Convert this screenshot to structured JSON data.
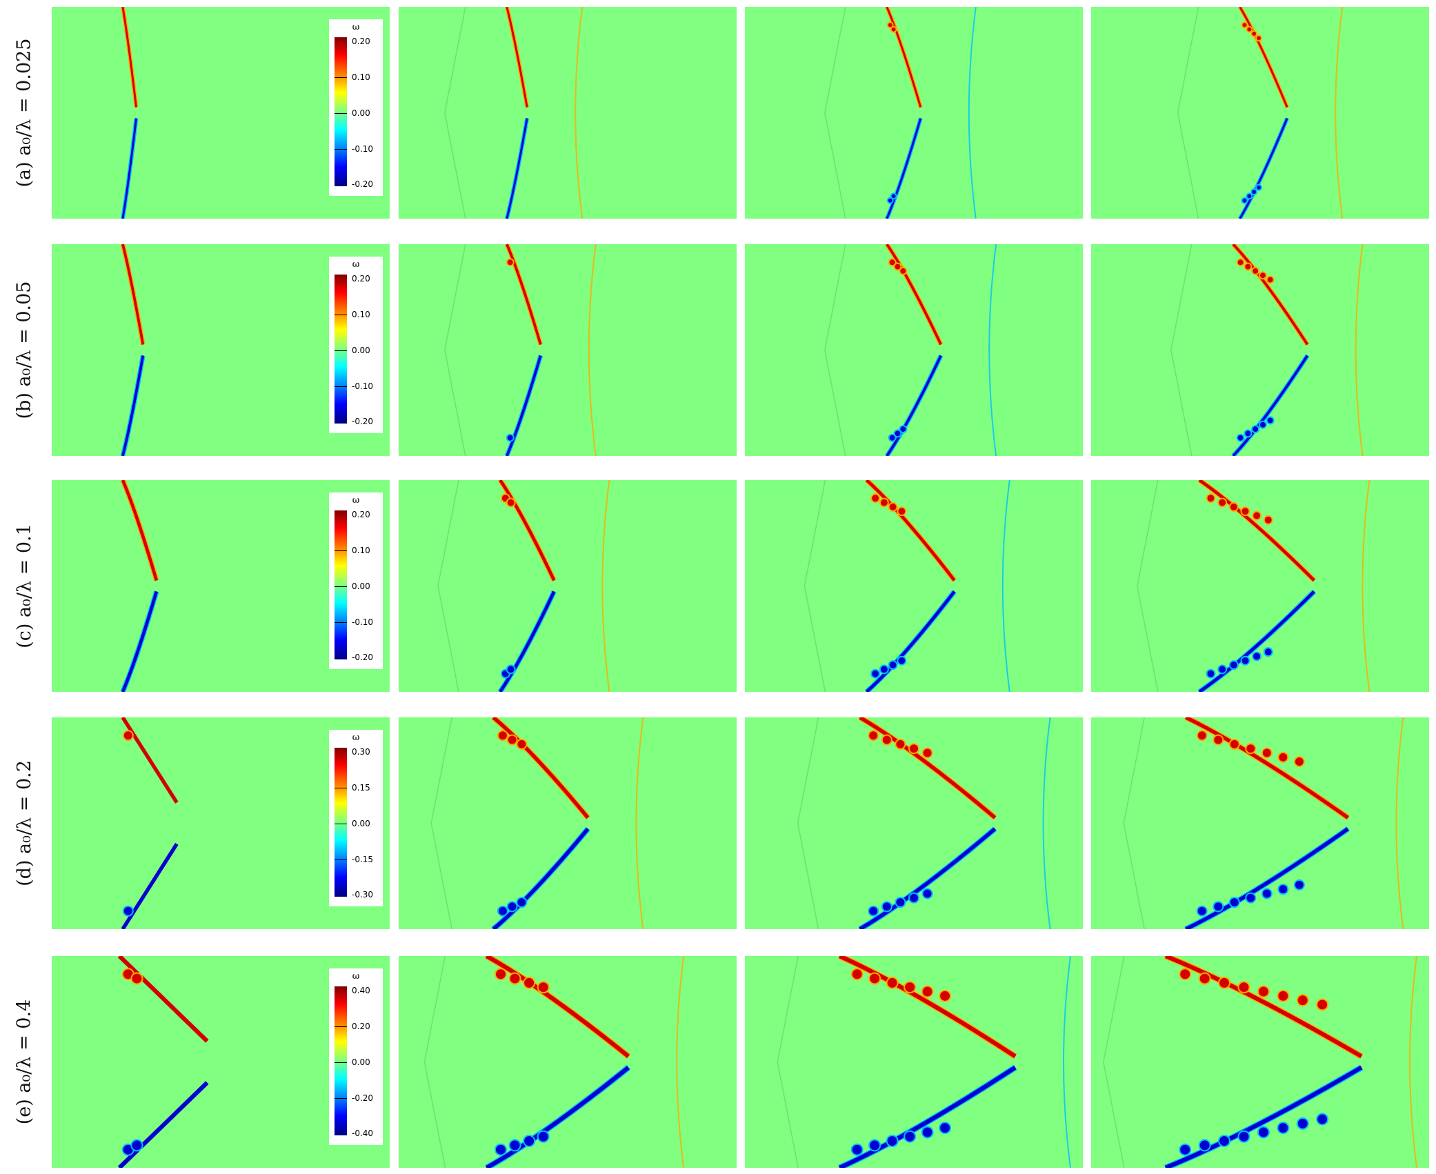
{
  "rows": [
    {
      "id": "a",
      "label": "(a) a₀/λ = 0.025",
      "colorbar": {
        "title": "ω",
        "ticks": [
          "0.20",
          "0.10",
          "0.00",
          "-0.10",
          "-0.20"
        ]
      }
    },
    {
      "id": "b",
      "label": "(b) a₀/λ = 0.05",
      "colorbar": {
        "title": "ω",
        "ticks": [
          "0.20",
          "0.10",
          "0.00",
          "-0.10",
          "-0.20"
        ]
      }
    },
    {
      "id": "c",
      "label": "(c) a₀/λ = 0.1",
      "colorbar": {
        "title": "ω",
        "ticks": [
          "0.20",
          "0.10",
          "0.00",
          "-0.10",
          "-0.20"
        ]
      }
    },
    {
      "id": "d",
      "label": "(d) a₀/λ = 0.2",
      "colorbar": {
        "title": "ω",
        "ticks": [
          "0.30",
          "0.15",
          "0.00",
          "-0.15",
          "-0.30"
        ]
      }
    },
    {
      "id": "e",
      "label": "(e) a₀/λ = 0.4",
      "colorbar": {
        "title": "ω",
        "ticks": [
          "0.40",
          "0.20",
          "0.00",
          "-0.20",
          "-0.40"
        ]
      }
    }
  ],
  "colormap": {
    "background": "#80ff80",
    "positive": "#d40000",
    "positive_edge": "#ffaa00",
    "negative": "#0000d0",
    "negative_edge": "#00c0ff"
  }
}
